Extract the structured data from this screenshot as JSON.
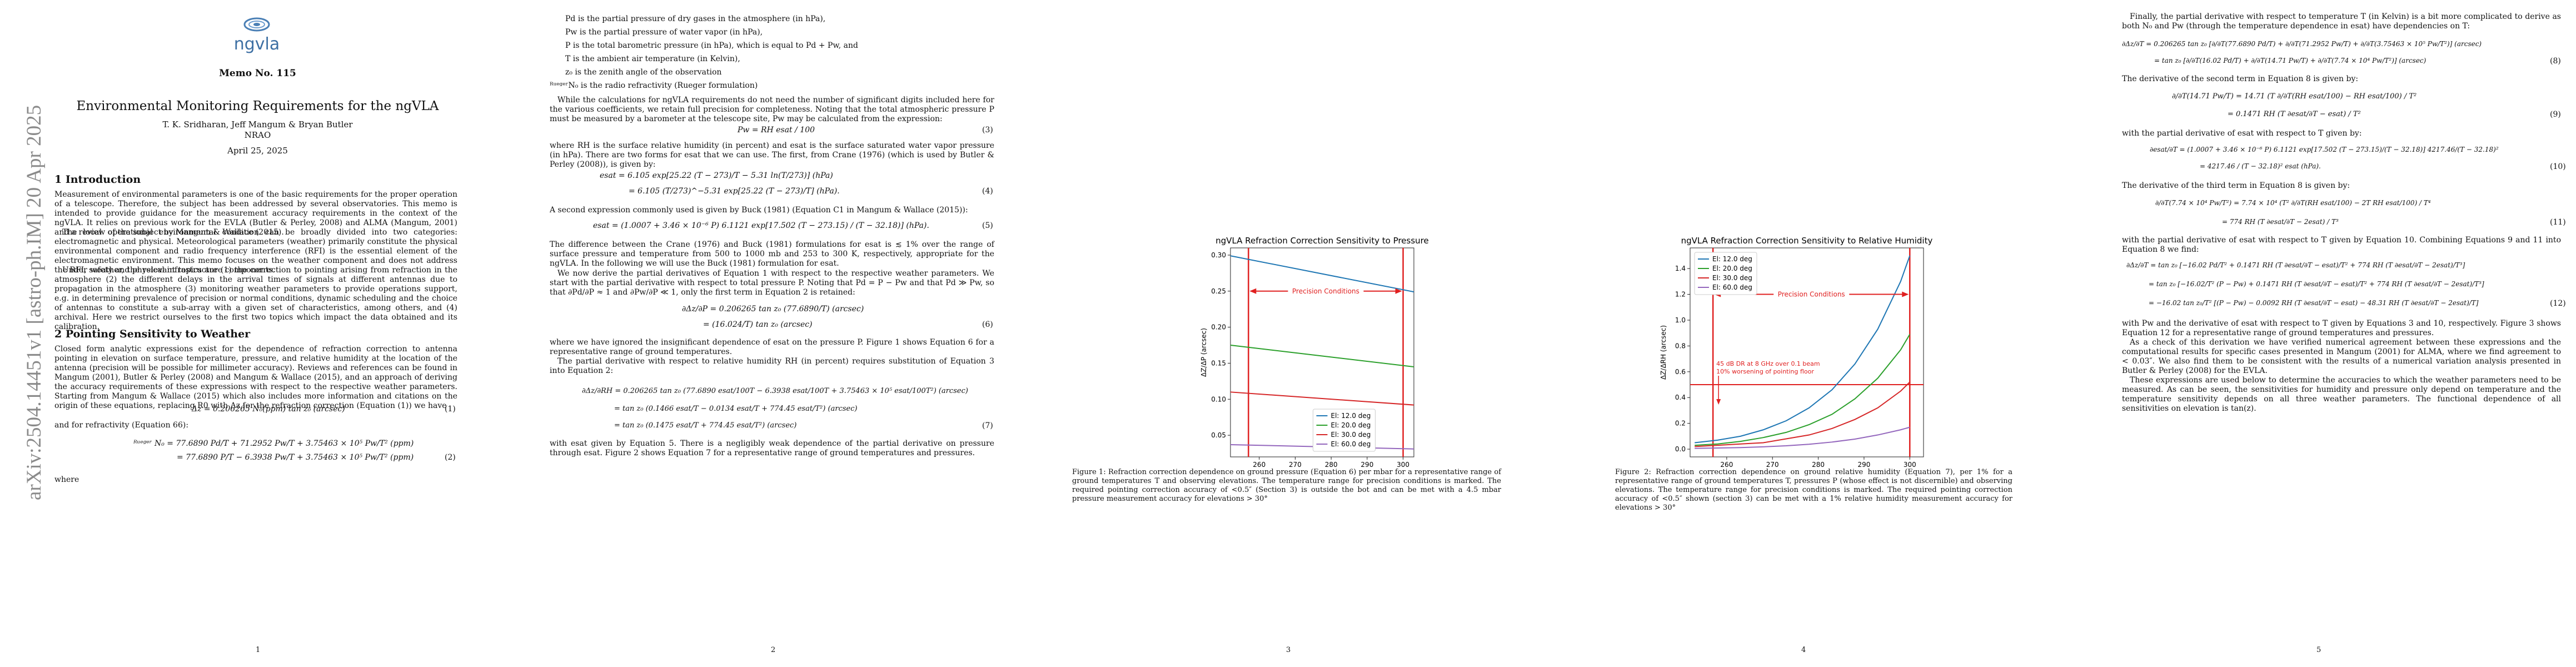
{
  "arxiv_stamp": "arXiv:2504.14451v1  [astro-ph.IM]  20 Apr 2025",
  "page1": {
    "logo_text": "ngvla",
    "memo": "Memo No. 115",
    "title": "Environmental Monitoring Requirements for the ngVLA",
    "authors": "T. K. Sridharan, Jeff Mangum & Bryan Butler",
    "affiliation": "NRAO",
    "date": "April 25, 2025",
    "sec1_heading": "1   Introduction",
    "intro_p1": "Measurement of environmental parameters is one of the basic requirements for the proper operation of a telescope. Therefore, the subject has been addressed by several observatories. This memo is intended to provide guidance for the measurement accuracy requirements in the context of the ngVLA. It relies on previous work for the EVLA (Butler & Perley, 2008) and ALMA (Mangum, 2001) and a review of the subject by Mangum & Wallace (2015).",
    "intro_p2": "The local operational environmental condition can be broadly divided into two categories: electromagnetic and physical. Meteorological parameters (weather) primarily constitute the physical environmental component and radio frequency interference (RFI) is the essential element of the electromagnetic environment. This memo focuses on the weather component and does not address the RFI, safety and physical infrastructure components.",
    "intro_p3": "Under weather, the relevant topics are (1) the correction to pointing arising from refraction in the atmosphere (2) the different delays in the arrival times of signals at different antennas due to propagation in the atmosphere (3) monitoring weather parameters to provide operations support, e.g. in determining prevalence of precision or normal conditions, dynamic scheduling and the choice of antennas to constitute a sub-array with a given set of characteristics, among others, and (4) archival. Here we restrict ourselves to the first two topics which impact the data obtained and its calibration.",
    "sec2_heading": "2   Pointing Sensitivity to Weather",
    "sec2_p1": "Closed form analytic expressions exist for the dependence of refraction correction to antenna pointing in elevation on surface temperature, pressure, and relative humidity at the location of the antenna (precision will be possible for millimeter accuracy). Reviews and references can be found in Mangum (2001), Butler & Perley (2008) and Mangum & Wallace (2015), and an approach of deriving the accuracy requirements of these expressions with respect to the respective weather parameters. Starting from Mangum & Wallace (2015) which also includes more information and citations on the origin of these equations, replacing R0 with Δz for the refraction correction (Equation (1)) we have",
    "eq1": "Δz = 0.206265 N₀(ppm) tan z₀ (arcsec)",
    "eq1_num": "(1)",
    "sec2_p2": "and for refractivity (Equation 66):",
    "eq2a": "ᴿᵘᵉᵍᵉʳ N₀ = 77.6890 Pd/T + 71.2952 Pw/T + 3.75463 × 10⁵ Pw/T² (ppm)",
    "eq2b": "= 77.6890 P/T − 6.3938 Pw/T + 3.75463 × 10⁵ Pw/T² (ppm)",
    "eq2_num": "(2)",
    "where": "where",
    "page_number": "1"
  },
  "page2": {
    "defs": [
      "Pd is the partial pressure of dry gases in the atmosphere (in hPa),",
      "Pw is the partial pressure of water vapor (in hPa),",
      "P is the total barometric pressure (in hPa), which is equal to Pd + Pw, and",
      "T is the ambient air temperature (in Kelvin),",
      "z₀ is the zenith angle of the observation",
      "ᴿᵘᵉᵍᵉʳN₀ is the radio refractivity (Rueger formulation)"
    ],
    "p1": "While the calculations for ngVLA requirements do not need the number of significant digits included here for the various coefficients, we retain full precision for completeness. Noting that the total atmospheric pressure P must be measured by a barometer at the telescope site, Pw may be calculated from the expression:",
    "eq3": "Pw = RH esat / 100",
    "eq3_num": "(3)",
    "p2": "where RH is the surface relative humidity (in percent) and esat is the surface saturated water vapor pressure (in hPa). There are two forms for esat that we can use. The first, from Crane (1976) (which is used by Butler & Perley (2008)), is given by:",
    "eq4a": "esat = 6.105 exp[25.22 (T − 273)/T − 5.31 ln(T/273)] (hPa)",
    "eq4b": "= 6.105 (T/273)^−5.31 exp[25.22 (T − 273)/T] (hPa).",
    "eq4_num": "(4)",
    "p3": "A second expression commonly used is given by Buck (1981) (Equation C1 in Mangum & Wallace (2015)):",
    "eq5": "esat = (1.0007 + 3.46 × 10⁻⁶ P) 6.1121 exp[17.502 (T − 273.15) / (T − 32.18)] (hPa).",
    "eq5_num": "(5)",
    "p4": "The difference between the Crane (1976) and Buck (1981) formulations for esat is ≲ 1% over the range of surface pressure and temperature from 500 to 1000 mb and 253 to 300 K, respectively, appropriate for the ngVLA. In the following we will use the Buck (1981) formulation for esat.",
    "p5": "We now derive the partial derivatives of Equation 1 with respect to the respective weather parameters. We start with the partial derivative with respect to total pressure P. Noting that Pd = P − Pw and that Pd ≫ Pw, so that ∂Pd/∂P ≈ 1 and ∂Pw/∂P ≪ 1, only the first term in Equation 2 is retained:",
    "eq6a": "∂Δz/∂P = 0.206265 tan z₀ (77.6890/T) (arcsec)",
    "eq6b": "= (16.024/T) tan z₀ (arcsec)",
    "eq6_num": "(6)",
    "p6": "where we have ignored the insignificant dependence of esat on the pressure P. Figure 1 shows Equation 6 for a representative range of ground temperatures.",
    "p7": "The partial derivative with respect to relative humidity RH (in percent) requires substitution of Equation 3 into Equation 2:",
    "eq7a": "∂Δz/∂RH = 0.206265 tan z₀ (77.6890 esat/100T − 6.3938 esat/100T + 3.75463 × 10⁵ esat/100T²) (arcsec)",
    "eq7b": "= tan z₀ (0.1466 esat/T − 0.0134 esat/T + 774.45 esat/T²) (arcsec)",
    "eq7c": "= tan z₀ (0.1475 esat/T + 774.45 esat/T²) (arcsec)",
    "eq7_num": "(7)",
    "p8": "with esat given by Equation 5. There is a negligibly weak dependence of the partial derivative on pressure through esat. Figure 2 shows Equation 7 for a representative range of ground temperatures and pressures.",
    "page_number": "2"
  },
  "page3": {
    "caption": "Figure 1: Refraction correction dependence on ground pressure (Equation 6) per mbar for a representative range of ground temperatures T and observing elevations. The temperature range for precision conditions is marked. The required pointing correction accuracy of <0.5″ (Section 3) is outside the bot and can be met with a 4.5 mbar pressure measurement accuracy for elevations > 30°",
    "page_number": "3"
  },
  "page4": {
    "caption": "Figure 2: Refraction correction dependence on ground relative humidity (Equation 7), per 1% for a representative range of ground temperatures T, pressures P (whose effect is not discernible) and observing elevations. The temperature range for precision conditions is marked. The required pointing correction accuracy of <0.5″ shown (section 3) can be met with a 1% relative humidity measurement accuracy for elevations > 30°",
    "page_number": "4"
  },
  "page5": {
    "p1": "Finally, the partial derivative with respect to temperature T (in Kelvin) is a bit more complicated to derive as both N₀ and Pw (through the temperature dependence in esat) have dependencies on T:",
    "eq8a": "∂Δz/∂T = 0.206265 tan z₀ [∂/∂T(77.6890 Pd/T) + ∂/∂T(71.2952 Pw/T) + ∂/∂T(3.75463 × 10⁵ Pw/T²)] (arcsec)",
    "eq8b": "= tan z₀ [∂/∂T(16.02 Pd/T) + ∂/∂T(14.71 Pw/T) + ∂/∂T(7.74 × 10⁴ Pw/T²)] (arcsec)",
    "eq8_num": "(8)",
    "p2": "The derivative of the second term in Equation 8 is given by:",
    "eq9a": "∂/∂T(14.71 Pw/T) = 14.71 (T ∂/∂T(RH esat/100) − RH esat/100) / T²",
    "eq9b": "= 0.1471 RH (T ∂esat/∂T − esat) / T²",
    "eq9_num": "(9)",
    "p3": "with the partial derivative of esat with respect to T given by:",
    "eq10a": "∂esat/∂T = (1.0007 + 3.46 × 10⁻⁶ P) 6.1121 exp[17.502 (T − 273.15)/(T − 32.18)] 4217.46/(T − 32.18)²",
    "eq10b": "= 4217.46 / (T − 32.18)² esat (hPa).",
    "eq10_num": "(10)",
    "p4": "The derivative of the third term in Equation 8 is given by:",
    "eq11a": "∂/∂T(7.74 × 10⁴ Pw/T²) = 7.74 × 10⁴ (T² ∂/∂T(RH esat/100) − 2T RH esat/100) / T⁴",
    "eq11b": "= 774 RH (T ∂esat/∂T − 2esat) / T³",
    "eq11_num": "(11)",
    "p5": "with the partial derivative of esat with respect to T given by Equation 10. Combining Equations 9 and 11 into Equation 8 we find:",
    "eq12a": "∂Δz/∂T = tan z₀ [−16.02 Pd/T² + 0.1471 RH (T ∂esat/∂T − esat)/T² + 774 RH (T ∂esat/∂T − 2esat)/T³]",
    "eq12b": "= tan z₀ [−16.02/T² (P − Pw) + 0.1471 RH (T ∂esat/∂T − esat)/T² + 774 RH (T ∂esat/∂T − 2esat)/T³]",
    "eq12c": "= −16.02 tan z₀/T² [(P − Pw) − 0.0092 RH (T ∂esat/∂T − esat) − 48.31 RH (T ∂esat/∂T − 2esat)/T]",
    "eq12_num": "(12)",
    "p6": "with Pw and the derivative of esat with respect to T given by Equations 3 and 10, respectively. Figure 3 shows Equation 12 for a representative range of ground temperatures and pressures.",
    "p7": "As a check of this derivation we have verified numerical agreement between these expressions and the computational results for specific cases presented in Mangum (2001) for ALMA, where we find agreement to < 0.03″. We also find them to be consistent with the results of a numerical variation analysis presented in Butler & Perley (2008) for the EVLA.",
    "p8": "These expressions are used below to determine the accuracies to which the weather parameters need to be measured. As can be seen, the sensitivities for humidity and pressure only depend on temperature and the temperature sensitivity depends on all three weather parameters. The functional dependence of all sensitivities on elevation is tan(z).",
    "page_number": "5"
  },
  "chart_data": [
    {
      "type": "line",
      "title": "ngVLA Refraction Correction Sensitivity to Pressure",
      "xlabel": "Ambient Temperature (K)",
      "ylabel": "ΔZ/ΔP (arcsec)",
      "xlim": [
        252,
        303
      ],
      "ylim": [
        0.02,
        0.31
      ],
      "xticks": [
        260,
        270,
        280,
        290,
        300
      ],
      "yticks": [
        0.05,
        0.1,
        0.15,
        0.2,
        0.25,
        0.3
      ],
      "x": [
        252,
        303
      ],
      "series": [
        {
          "name": "El: 12.0 deg",
          "color": "#1f77b4",
          "values": [
            0.299,
            0.249
          ]
        },
        {
          "name": "El: 20.0 deg",
          "color": "#2ca02c",
          "values": [
            0.175,
            0.145
          ]
        },
        {
          "name": "El: 30.0 deg",
          "color": "#d62728",
          "values": [
            0.11,
            0.092
          ]
        },
        {
          "name": "El: 60.0 deg",
          "color": "#9467bd",
          "values": [
            0.037,
            0.031
          ]
        }
      ],
      "vlines": [
        257,
        300
      ],
      "annotation": "Precision Conditions",
      "annotation_y": 0.25,
      "legend": "lower-center"
    },
    {
      "type": "line",
      "title": "ngVLA Refraction Correction Sensitivity to Relative Humidity",
      "xlabel": "Ambient Temperature (K)",
      "ylabel": "ΔZ/ΔRH (arcsec)",
      "xlim": [
        252,
        303
      ],
      "ylim": [
        -0.06,
        1.56
      ],
      "xticks": [
        260,
        270,
        280,
        290,
        300
      ],
      "yticks": [
        0.0,
        0.2,
        0.4,
        0.6,
        0.8,
        1.0,
        1.2,
        1.4
      ],
      "x": [
        253,
        258,
        263,
        268,
        273,
        278,
        283,
        288,
        293,
        298,
        300
      ],
      "series": [
        {
          "name": "El: 12.0 deg",
          "color": "#1f77b4",
          "values": [
            0.05,
            0.07,
            0.1,
            0.15,
            0.22,
            0.32,
            0.46,
            0.66,
            0.93,
            1.3,
            1.5
          ]
        },
        {
          "name": "El: 20.0 deg",
          "color": "#2ca02c",
          "values": [
            0.03,
            0.04,
            0.06,
            0.09,
            0.13,
            0.19,
            0.27,
            0.39,
            0.55,
            0.77,
            0.89
          ]
        },
        {
          "name": "El: 30.0 deg",
          "color": "#d62728",
          "values": [
            0.02,
            0.03,
            0.04,
            0.05,
            0.08,
            0.11,
            0.16,
            0.23,
            0.32,
            0.45,
            0.52
          ]
        },
        {
          "name": "El: 60.0 deg",
          "color": "#9467bd",
          "values": [
            0.006,
            0.009,
            0.012,
            0.018,
            0.026,
            0.038,
            0.055,
            0.078,
            0.11,
            0.15,
            0.17
          ]
        }
      ],
      "vlines": [
        257,
        300
      ],
      "hline": 0.5,
      "annotation": "Precision Conditions",
      "annotation_y": 1.2,
      "annotation2": "45 dB DR at 8 GHz over 0.1 beam\n10% worsening of pointing floor",
      "legend": "top-left"
    }
  ]
}
